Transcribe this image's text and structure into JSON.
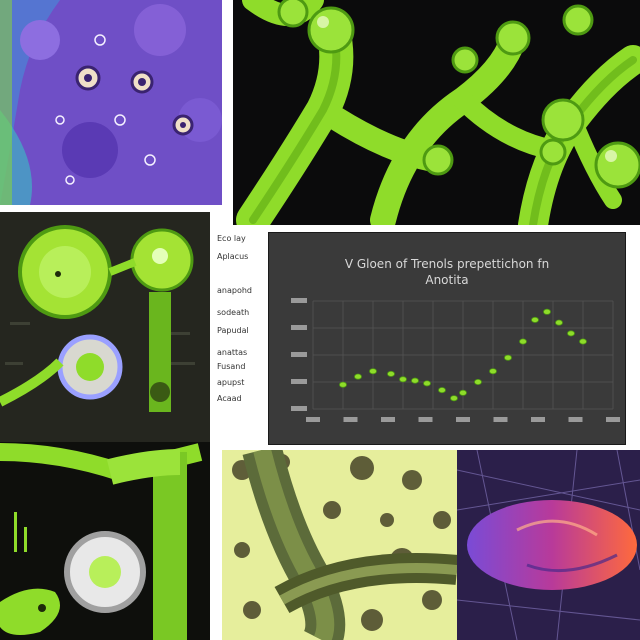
{
  "chart": {
    "title_line1": "V Gloen of Trenols prepettichon fn",
    "title_line2": "Anotita"
  },
  "side_labels": [
    "Eco lay",
    "Aplacus",
    "anapohd",
    "sodeath",
    "Papudal",
    "anattas",
    "Fusand",
    "apupst",
    "Acaad"
  ],
  "colors": {
    "green": "#8fdc2a",
    "green_dark": "#4e9a12",
    "purple": "#6f4fc6",
    "chart_bg": "#3a3a3a"
  },
  "chart_data": {
    "type": "scatter",
    "title": "V Gloen of Trenols prepettichon fn Anotita",
    "points": [
      [
        1,
        0.9
      ],
      [
        1.5,
        1.2
      ],
      [
        2,
        1.4
      ],
      [
        2.6,
        1.3
      ],
      [
        3,
        1.1
      ],
      [
        3.4,
        1.05
      ],
      [
        3.8,
        0.95
      ],
      [
        4.3,
        0.7
      ],
      [
        4.7,
        0.4
      ],
      [
        5,
        0.6
      ],
      [
        5.5,
        1.0
      ],
      [
        6,
        1.4
      ],
      [
        6.5,
        1.9
      ],
      [
        7,
        2.5
      ],
      [
        7.4,
        3.3
      ],
      [
        7.8,
        3.6
      ],
      [
        8.2,
        3.2
      ],
      [
        8.6,
        2.8
      ],
      [
        9,
        2.5
      ]
    ]
  }
}
